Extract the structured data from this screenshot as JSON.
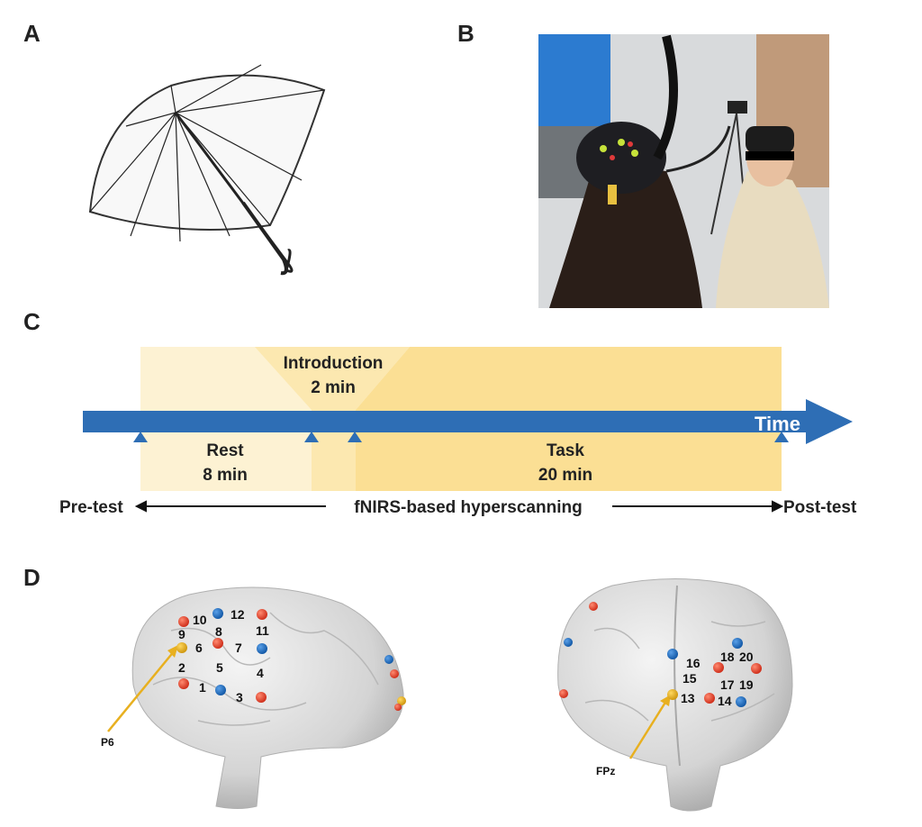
{
  "panels": {
    "a": "A",
    "b": "B",
    "c": "C",
    "d": "D"
  },
  "timeline": {
    "intro_title": "Introduction",
    "intro_duration": "2 min",
    "rest_title": "Rest",
    "rest_duration": "8 min",
    "task_title": "Task",
    "task_duration": "20 min",
    "time_label": "Time",
    "pre_test": "Pre-test",
    "middle": "fNIRS-based hyperscanning",
    "post_test": "Post-test"
  },
  "colors": {
    "arrow": "#2e6eb5",
    "rest": "#fdf2d3",
    "task": "#fbdf94",
    "source": "#e0402c",
    "detector": "#1f6fc0",
    "reference": "#e8b020"
  },
  "brain_left": {
    "reference_label": "P6",
    "channels": [
      "1",
      "2",
      "3",
      "4",
      "5",
      "6",
      "7",
      "8",
      "9",
      "10",
      "11",
      "12"
    ]
  },
  "brain_right": {
    "reference_label": "FPz",
    "channels": [
      "13",
      "14",
      "15",
      "16",
      "17",
      "18",
      "19",
      "20"
    ]
  }
}
